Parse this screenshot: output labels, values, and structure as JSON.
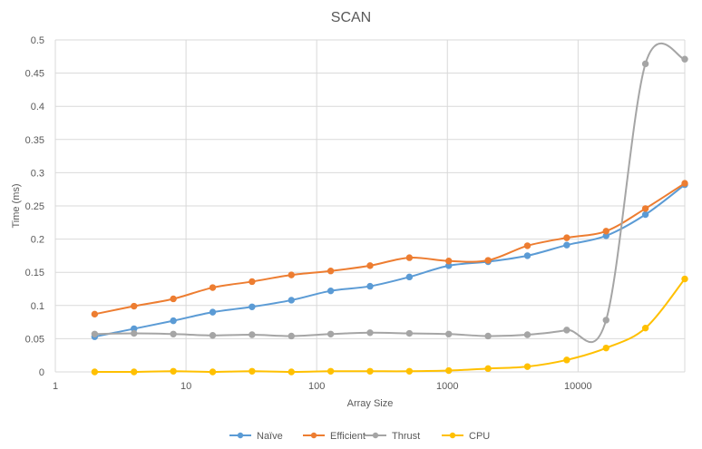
{
  "chart_data": {
    "type": "line",
    "title": "SCAN",
    "xlabel": "Array Size",
    "ylabel": "Time (ms)",
    "xscale": "log10",
    "xlim": [
      1,
      65536
    ],
    "ylim": [
      0,
      0.5
    ],
    "x_ticks": [
      1,
      10,
      100,
      1000,
      10000
    ],
    "x_tick_labels": [
      "1",
      "10",
      "100",
      "1000",
      "10000"
    ],
    "y_ticks": [
      0,
      0.05,
      0.1,
      0.15,
      0.2,
      0.25,
      0.3,
      0.35,
      0.4,
      0.45,
      0.5
    ],
    "y_tick_labels": [
      "0",
      "0.05",
      "0.1",
      "0.15",
      "0.2",
      "0.25",
      "0.3",
      "0.35",
      "0.4",
      "0.45",
      "0.5"
    ],
    "grid": "vertical and horizontal major gridlines",
    "legend_position": "bottom",
    "x": [
      2,
      4,
      8,
      16,
      32,
      64,
      128,
      256,
      512,
      1024,
      2048,
      4096,
      8192,
      16384,
      32768,
      65536
    ],
    "series": [
      {
        "name": "Naïve",
        "color": "#5b9bd5",
        "values": [
          0.053,
          0.065,
          0.077,
          0.09,
          0.098,
          0.108,
          0.122,
          0.129,
          0.143,
          0.16,
          0.166,
          0.175,
          0.191,
          0.205,
          0.237,
          0.282
        ]
      },
      {
        "name": "Efficient",
        "color": "#ed7d31",
        "values": [
          0.087,
          0.099,
          0.11,
          0.127,
          0.136,
          0.146,
          0.152,
          0.16,
          0.172,
          0.167,
          0.168,
          0.19,
          0.202,
          0.212,
          0.246,
          0.284
        ]
      },
      {
        "name": "Thrust",
        "color": "#a5a5a5",
        "values": [
          0.057,
          0.058,
          0.057,
          0.055,
          0.056,
          0.054,
          0.057,
          0.059,
          0.058,
          0.057,
          0.054,
          0.056,
          0.063,
          0.078,
          0.464,
          0.471
        ]
      },
      {
        "name": "CPU",
        "color": "#ffc000",
        "values": [
          0.0,
          0.0,
          0.001,
          0.0,
          0.001,
          0.0,
          0.001,
          0.001,
          0.001,
          0.002,
          0.005,
          0.008,
          0.018,
          0.036,
          0.066,
          0.14
        ]
      }
    ]
  }
}
